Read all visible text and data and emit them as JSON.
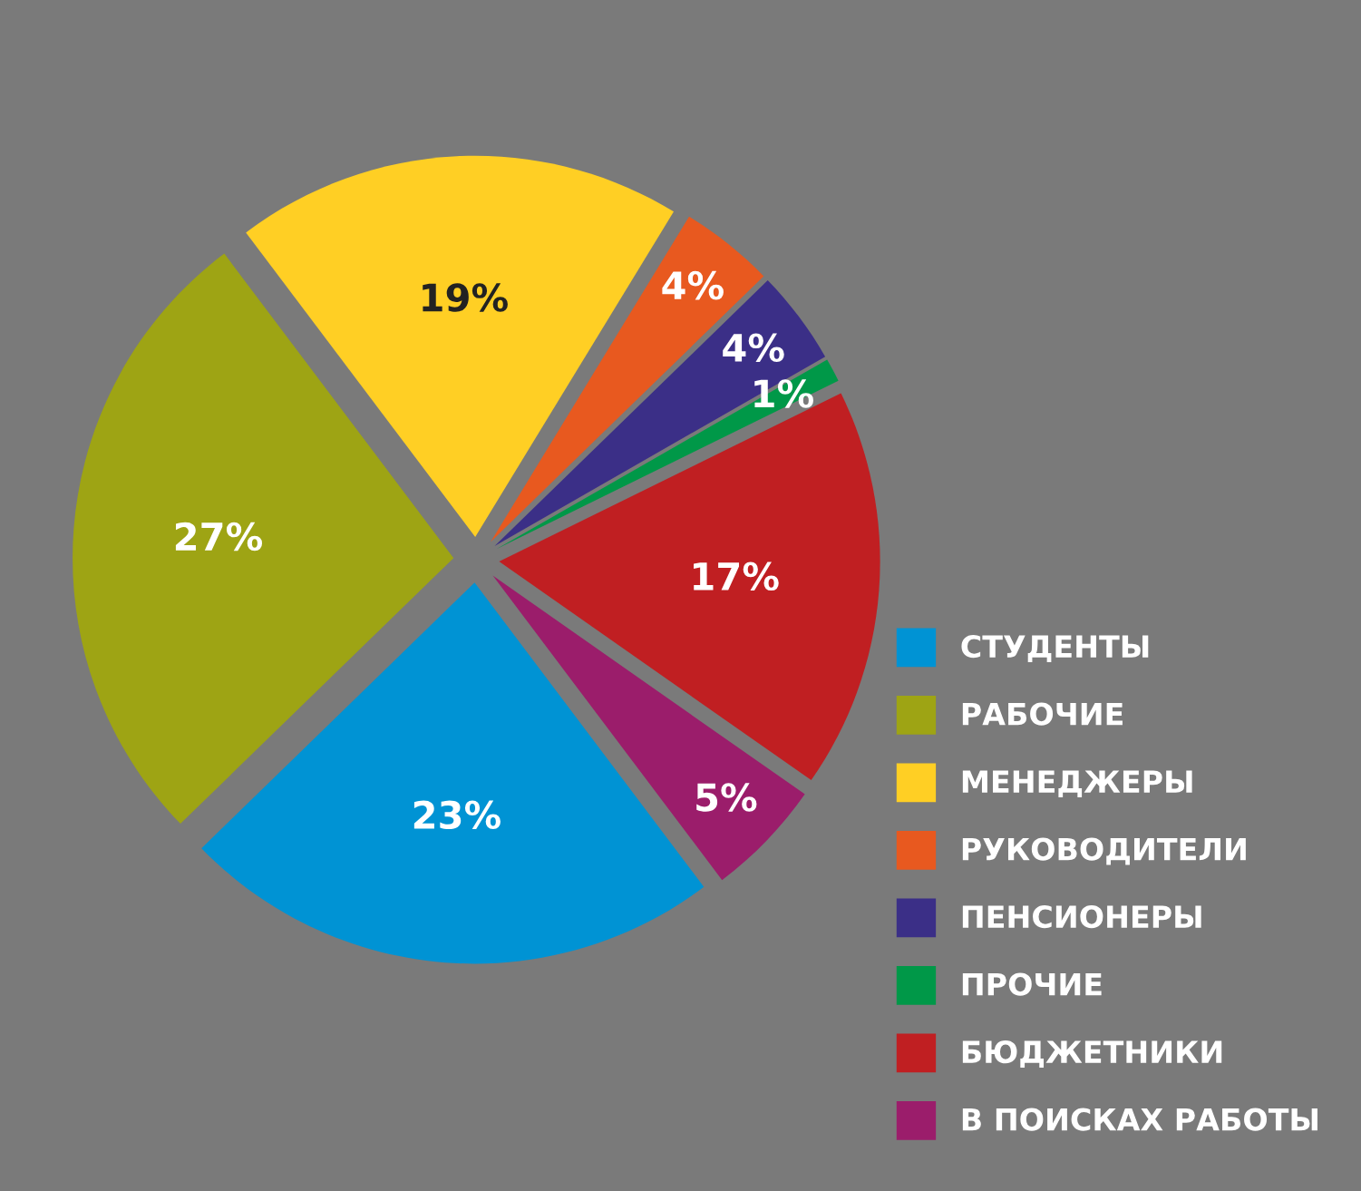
{
  "chart_data": {
    "type": "pie",
    "categories": [
      "СТУДЕНТЫ",
      "РАБОЧИЕ",
      "МЕНЕДЖЕРЫ",
      "РУКОВОДИТЕЛИ",
      "ПЕНСИОНЕРЫ",
      "ПРОЧИЕ",
      "БЮДЖЕТНИКИ",
      "В ПОИСКАХ РАБОТЫ"
    ],
    "values": [
      23,
      27,
      19,
      4,
      4,
      1,
      17,
      5
    ],
    "value_labels": [
      "23%",
      "27%",
      "19%",
      "4%",
      "4%",
      "1%",
      "17%",
      "5%"
    ],
    "colors": [
      "#0093d4",
      "#9ea414",
      "#ffcf24",
      "#e8591f",
      "#3b2f87",
      "#009848",
      "#c01f22",
      "#9b1d6b"
    ],
    "legend": "bottom right"
  }
}
